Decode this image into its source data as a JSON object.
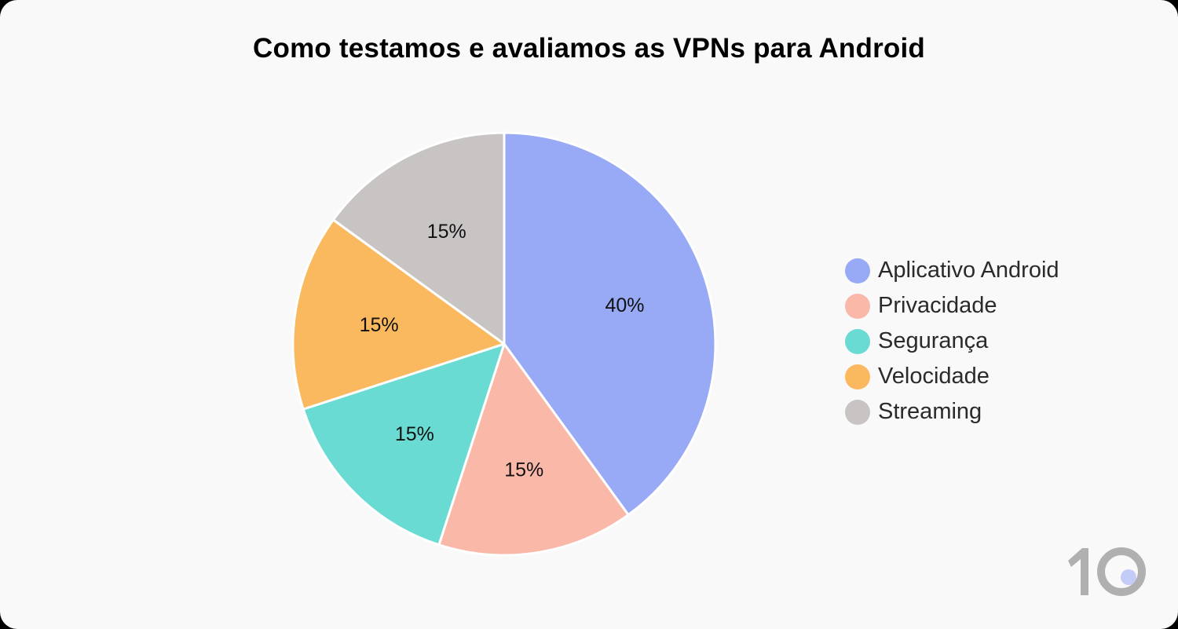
{
  "chart_data": {
    "type": "pie",
    "title": "Como testamos e avaliamos as VPNs para Android",
    "categories": [
      "Aplicativo Android",
      "Privacidade",
      "Segurança",
      "Velocidade",
      "Streaming"
    ],
    "values": [
      40,
      15,
      15,
      15,
      15
    ],
    "labels": [
      "40%",
      "15%",
      "15%",
      "15%",
      "15%"
    ],
    "colors": [
      "#98aaf6",
      "#f9b8a8",
      "#69dbd2",
      "#fab95e",
      "#c8c4c4"
    ],
    "start_angle": "12 o'clock",
    "direction": "clockwise",
    "legend_position": "right"
  },
  "legend": {
    "items": [
      {
        "label": "Aplicativo Android",
        "color": "#98aaf6"
      },
      {
        "label": "Privacidade",
        "color": "#f9b8a8"
      },
      {
        "label": "Segurança",
        "color": "#69dbd2"
      },
      {
        "label": "Velocidade",
        "color": "#fab95e"
      },
      {
        "label": "Streaming",
        "color": "#c8c4c4"
      }
    ]
  },
  "logo": {
    "text": "10",
    "ring_color": "#b0b0b0",
    "dot_color": "#c3cbf7"
  }
}
